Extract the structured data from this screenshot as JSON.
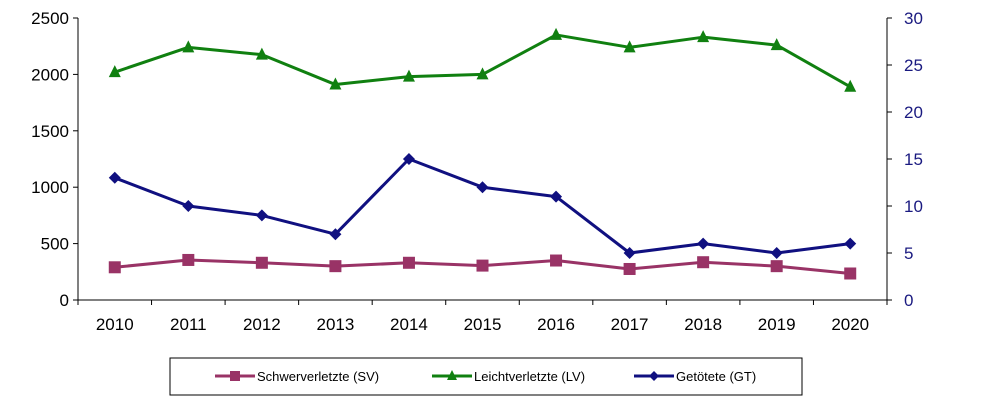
{
  "chart_data": {
    "type": "line",
    "categories": [
      "2010",
      "2011",
      "2012",
      "2013",
      "2014",
      "2015",
      "2016",
      "2017",
      "2018",
      "2019",
      "2020"
    ],
    "y_left": {
      "ticks": [
        "0",
        "500",
        "1000",
        "1500",
        "2000",
        "2500"
      ],
      "range": [
        0,
        2500
      ]
    },
    "y_right": {
      "ticks": [
        "0",
        "5",
        "10",
        "15",
        "20",
        "25",
        "30"
      ],
      "range": [
        0,
        30
      ],
      "color": "#1a1a80"
    },
    "grid": false,
    "legend_position": "bottom",
    "series": [
      {
        "name": "Schwerverletzte (SV)",
        "axis": "left",
        "color": "#993366",
        "marker": "square",
        "values": [
          290,
          355,
          330,
          300,
          330,
          305,
          350,
          275,
          335,
          300,
          235
        ]
      },
      {
        "name": "Leichtverletzte (LV)",
        "axis": "left",
        "color": "#108010",
        "marker": "triangle",
        "values": [
          2020,
          2240,
          2175,
          1910,
          1980,
          2000,
          2350,
          2240,
          2330,
          2260,
          1890
        ]
      },
      {
        "name": "Getötete (GT)",
        "axis": "right",
        "color": "#101080",
        "marker": "diamond",
        "values": [
          13,
          10,
          9,
          7,
          15,
          12,
          11,
          5,
          6,
          5,
          6
        ]
      }
    ]
  }
}
